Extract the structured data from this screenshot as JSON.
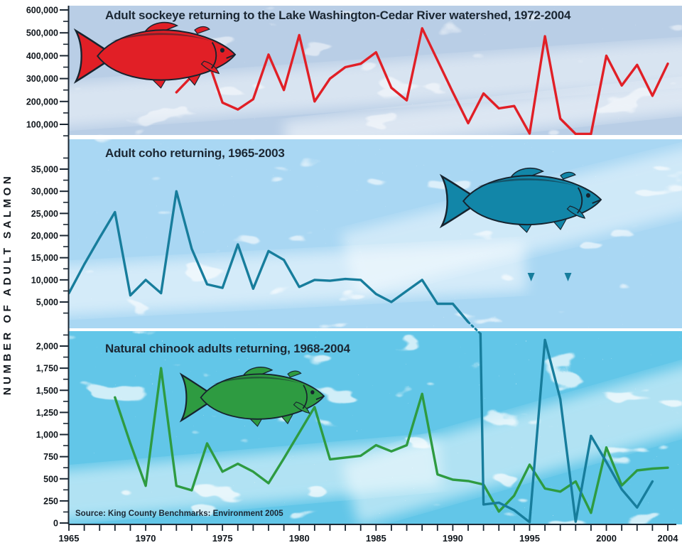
{
  "y_axis_label": "NUMBER OF ADULT SALMON",
  "source_note": "Source: King County Benchmarks: Environment 2005",
  "x_axis": {
    "first_year": 1965,
    "last_year": 2004,
    "tick_every_years": 1,
    "tick_labels": [
      "1965",
      "1970",
      "1975",
      "1980",
      "1985",
      "1990",
      "1995",
      "2000",
      "2004"
    ]
  },
  "colors": {
    "sockeye_red": "#e11f26",
    "coho_teal": "#177d9c",
    "chinook_green": "#2e9b41",
    "panel_sockeye_bg": "#b9cee6",
    "panel_coho_bg": "#a9d7f3",
    "panel_chinook_bg": "#62c6e8",
    "ink": "#1b2733",
    "white": "#ffffff"
  },
  "chart_data": [
    {
      "type": "line",
      "panel": "sockeye",
      "title": "Adult sockeye returning to the Lake Washington-Cedar River watershed, 1972-2004",
      "line_color": "#e11f26",
      "ylim": [
        50000,
        615000
      ],
      "yticks_major": [
        100000,
        200000,
        300000,
        400000,
        500000,
        600000
      ],
      "yticks_minor": [
        50000,
        150000,
        250000,
        350000,
        450000,
        550000
      ],
      "series": [
        {
          "name": "sockeye",
          "years": [
            1972,
            1973,
            1974,
            1975,
            1976,
            1977,
            1978,
            1979,
            1980,
            1981,
            1982,
            1983,
            1984,
            1985,
            1986,
            1987,
            1988,
            1989,
            1990,
            1991,
            1992,
            1993,
            1994,
            1995,
            1996,
            1997,
            1998,
            1999,
            2000,
            2001,
            2002,
            2003,
            2004
          ],
          "values": [
            240000,
            310000,
            390000,
            195000,
            165000,
            210000,
            405000,
            250000,
            490000,
            200000,
            300000,
            350000,
            365000,
            415000,
            260000,
            205000,
            520000,
            380000,
            240000,
            105000,
            235000,
            170000,
            180000,
            60000,
            485000,
            125000,
            55000,
            40000,
            400000,
            270000,
            360000,
            225000,
            365000
          ]
        }
      ]
    },
    {
      "type": "line",
      "panel": "coho",
      "title": "Adult coho returning, 1965-2003",
      "line_color": "#177d9c",
      "ylim": [
        0,
        41000
      ],
      "yticks_major": [
        5000,
        10000,
        15000,
        20000,
        25000,
        30000,
        35000
      ],
      "yticks_minor": [
        2500,
        7500,
        12500,
        17500,
        22500,
        27500,
        32500,
        37500
      ],
      "series": [
        {
          "name": "coho",
          "years": [
            1965,
            1966,
            1967,
            1968,
            1969,
            1970,
            1971,
            1972,
            1973,
            1974,
            1975,
            1976,
            1977,
            1978,
            1979,
            1980,
            1981,
            1982,
            1983,
            1984,
            1985,
            1986,
            1987,
            1988,
            1989,
            1990,
            1991
          ],
          "values": [
            7000,
            13500,
            19500,
            25300,
            6500,
            10000,
            7000,
            30000,
            17000,
            9000,
            8200,
            18000,
            8000,
            16500,
            14500,
            8400,
            10000,
            9800,
            10200,
            10000,
            6800,
            5000,
            7500,
            10000,
            4600,
            4600,
            500
          ]
        }
      ],
      "note": "after 1991 the coho line continues on the chinook panel scale via a dotted connector",
      "continuation_arrow_years": [
        1995.1,
        1997.5
      ]
    },
    {
      "type": "line",
      "panel": "chinook",
      "title": "Natural chinook adults returning, 1968-2004",
      "line_color": "#2e9b41",
      "ylim": [
        0,
        2175
      ],
      "yticks_major": [
        0,
        250,
        500,
        750,
        1000,
        1250,
        1500,
        1750,
        2000
      ],
      "yticks_minor": [
        125,
        375,
        625,
        875,
        1125,
        1375,
        1625,
        1875,
        2125
      ],
      "series": [
        {
          "name": "chinook",
          "years": [
            1968,
            1969,
            1970,
            1971,
            1972,
            1973,
            1974,
            1975,
            1976,
            1977,
            1978,
            1979,
            1980,
            1981,
            1982,
            1983,
            1984,
            1985,
            1986,
            1987,
            1988,
            1989,
            1990,
            1991,
            1992,
            1993,
            1994,
            1995,
            1996,
            1997,
            1998,
            1999,
            2000,
            2001,
            2002,
            2003,
            2004
          ],
          "values": [
            1420,
            900,
            420,
            1750,
            420,
            370,
            900,
            580,
            670,
            580,
            450,
            730,
            1020,
            1310,
            720,
            740,
            760,
            880,
            810,
            880,
            1460,
            550,
            490,
            475,
            435,
            130,
            310,
            660,
            390,
            355,
            470,
            115,
            855,
            425,
            595,
            615,
            625
          ]
        },
        {
          "name": "coho_continued_low_scale",
          "entry_from": "above",
          "years": [
            1991.8,
            1992,
            1993,
            1994,
            1995,
            1996,
            1997,
            1998,
            1999,
            2000,
            2001,
            2002,
            2003
          ],
          "values": [
            2140,
            210,
            230,
            145,
            10,
            2070,
            1400,
            15,
            985,
            690,
            380,
            175,
            470
          ]
        }
      ]
    }
  ]
}
